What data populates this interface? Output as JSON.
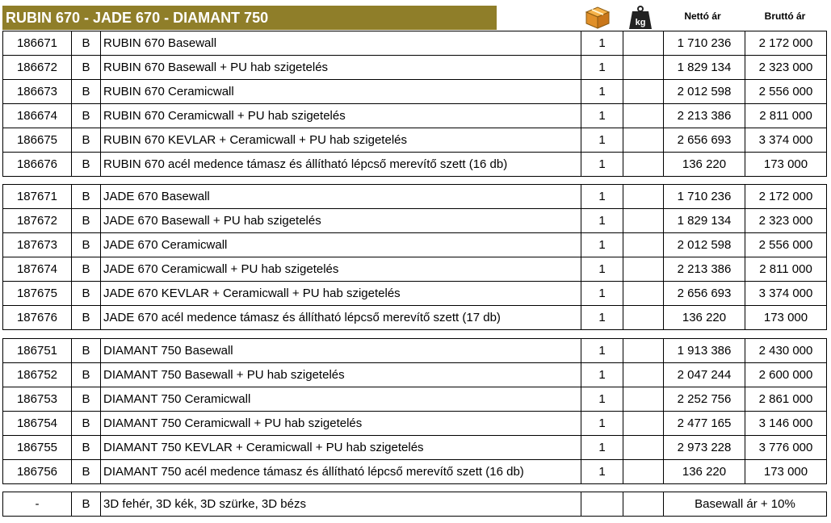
{
  "header": {
    "title": "RUBIN 670 - JADE 670 - DIAMANT 750",
    "icons": [
      "box-icon",
      "weight-icon"
    ],
    "net_label": "Nettó ár",
    "gross_label": "Bruttó ár",
    "weight_unit": "kg"
  },
  "groups": [
    {
      "rows": [
        {
          "code": "186671",
          "cat": "B",
          "name": "RUBIN 670 Basewall",
          "qty": "1",
          "net": "1 710 236",
          "gross": "2 172 000"
        },
        {
          "code": "186672",
          "cat": "B",
          "name": "RUBIN 670 Basewall + PU hab szigetelés",
          "qty": "1",
          "net": "1 829 134",
          "gross": "2 323 000"
        },
        {
          "code": "186673",
          "cat": "B",
          "name": "RUBIN 670 Ceramicwall",
          "qty": "1",
          "net": "2 012 598",
          "gross": "2 556 000"
        },
        {
          "code": "186674",
          "cat": "B",
          "name": "RUBIN 670 Ceramicwall + PU hab szigetelés",
          "qty": "1",
          "net": "2 213 386",
          "gross": "2 811 000"
        },
        {
          "code": "186675",
          "cat": "B",
          "name": "RUBIN 670 KEVLAR + Ceramicwall + PU hab szigetelés",
          "qty": "1",
          "net": "2 656 693",
          "gross": "3 374 000"
        },
        {
          "code": "186676",
          "cat": "B",
          "name": "RUBIN 670 acél medence támasz és állítható lépcső merevítő szett  (16 db)",
          "qty": "1",
          "net": "136 220",
          "gross": "173 000"
        }
      ]
    },
    {
      "rows": [
        {
          "code": "187671",
          "cat": "B",
          "name": "JADE 670 Basewall",
          "qty": "1",
          "net": "1 710 236",
          "gross": "2 172 000"
        },
        {
          "code": "187672",
          "cat": "B",
          "name": "JADE 670 Basewall + PU hab szigetelés",
          "qty": "1",
          "net": "1 829 134",
          "gross": "2 323 000"
        },
        {
          "code": "187673",
          "cat": "B",
          "name": "JADE 670 Ceramicwall",
          "qty": "1",
          "net": "2 012 598",
          "gross": "2 556 000"
        },
        {
          "code": "187674",
          "cat": "B",
          "name": "JADE 670 Ceramicwall + PU hab szigetelés",
          "qty": "1",
          "net": "2 213 386",
          "gross": "2 811 000"
        },
        {
          "code": "187675",
          "cat": "B",
          "name": "JADE 670 KEVLAR + Ceramicwall + PU hab szigetelés",
          "qty": "1",
          "net": "2 656 693",
          "gross": "3 374 000"
        },
        {
          "code": "187676",
          "cat": "B",
          "name": "JADE 670 acél medence támasz és állítható lépcső merevítő szett  (17 db)",
          "qty": "1",
          "net": "136 220",
          "gross": "173 000"
        }
      ]
    },
    {
      "rows": [
        {
          "code": "186751",
          "cat": "B",
          "name": "DIAMANT 750 Basewall",
          "qty": "1",
          "net": "1 913 386",
          "gross": "2 430 000"
        },
        {
          "code": "186752",
          "cat": "B",
          "name": "DIAMANT 750 Basewall + PU hab szigetelés",
          "qty": "1",
          "net": "2 047 244",
          "gross": "2 600 000"
        },
        {
          "code": "186753",
          "cat": "B",
          "name": "DIAMANT 750 Ceramicwall",
          "qty": "1",
          "net": "2 252 756",
          "gross": "2 861 000"
        },
        {
          "code": "186754",
          "cat": "B",
          "name": "DIAMANT 750 Ceramicwall + PU hab szigetelés",
          "qty": "1",
          "net": "2 477 165",
          "gross": "3 146 000"
        },
        {
          "code": "186755",
          "cat": "B",
          "name": "DIAMANT 750 KEVLAR + Ceramicwall + PU hab szigetelés",
          "qty": "1",
          "net": "2 973 228",
          "gross": "3 776 000"
        },
        {
          "code": "186756",
          "cat": "B",
          "name": "DIAMANT 750 acél medence támasz és állítható lépcső merevítő szett  (16 db)",
          "qty": "1",
          "net": "136 220",
          "gross": "173 000"
        }
      ]
    }
  ],
  "footer": {
    "code": "-",
    "cat": "B",
    "name": "3D fehér, 3D kék, 3D szürke, 3D bézs",
    "price_note": "Basewall ár + 10%"
  },
  "colors": {
    "title_bg": "#8f7e29",
    "title_text": "#ffffff",
    "border": "#000000"
  }
}
